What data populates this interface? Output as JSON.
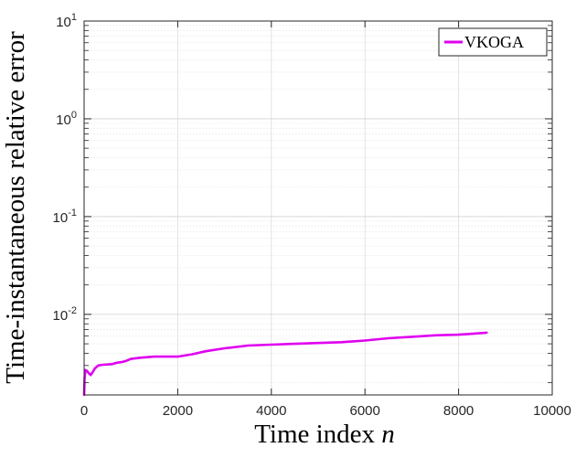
{
  "chart_data": {
    "type": "line",
    "xlabel": "Time index",
    "xlabel_var": "n",
    "ylabel": "Time-instantaneous relative error",
    "x_scale": "linear",
    "y_scale": "log",
    "xlim": [
      0,
      10000
    ],
    "ylim": [
      0.0015,
      10
    ],
    "x_ticks": [
      0,
      2000,
      4000,
      6000,
      8000,
      10000
    ],
    "x_tick_labels": [
      "0",
      "2000",
      "4000",
      "6000",
      "8000",
      "10000"
    ],
    "y_ticks": [
      {
        "value": 10,
        "base": "10",
        "exp": "1"
      },
      {
        "value": 1,
        "base": "10",
        "exp": "0"
      },
      {
        "value": 0.1,
        "base": "10",
        "exp": "-1"
      },
      {
        "value": 0.01,
        "base": "10",
        "exp": "-2"
      }
    ],
    "grid": true,
    "minor_grid": true,
    "legend_position": "top-right",
    "series": [
      {
        "name": "VKOGA",
        "color": "#e000f0",
        "x": [
          0,
          10,
          30,
          60,
          100,
          140,
          180,
          230,
          300,
          400,
          600,
          700,
          800,
          900,
          1000,
          1200,
          1500,
          1800,
          2000,
          2300,
          2600,
          3000,
          3500,
          4000,
          4500,
          5000,
          5500,
          6000,
          6500,
          7000,
          7500,
          8000,
          8600
        ],
        "y": [
          0.0015,
          0.0022,
          0.0027,
          0.00265,
          0.0025,
          0.0024,
          0.00255,
          0.0028,
          0.003,
          0.00305,
          0.0031,
          0.0032,
          0.00325,
          0.00335,
          0.0035,
          0.0036,
          0.0037,
          0.0037,
          0.0037,
          0.0039,
          0.0042,
          0.0045,
          0.0048,
          0.0049,
          0.005,
          0.0051,
          0.0052,
          0.0054,
          0.0057,
          0.0059,
          0.0061,
          0.0062,
          0.0065
        ]
      }
    ]
  }
}
